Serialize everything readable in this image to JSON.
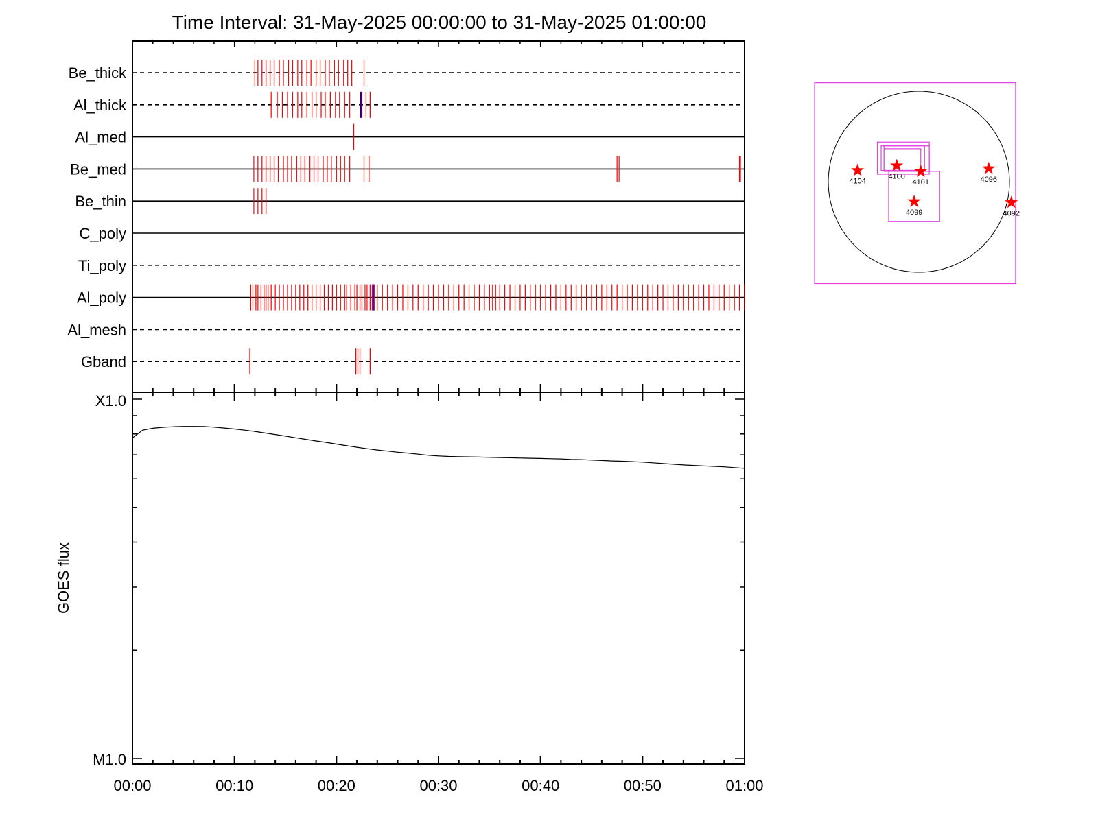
{
  "title": "Time Interval: 31-May-2025 00:00:00 to 31-May-2025 01:00:00",
  "colors": {
    "event_red": "#ff0000",
    "event_blue": "#0000cc",
    "fov_magenta": "#e040e0",
    "axis": "#000000"
  },
  "chart_data": [
    {
      "type": "timeline",
      "title": "Time Interval: 31-May-2025 00:00:00 to 31-May-2025 01:00:00",
      "xlim_minutes": [
        0,
        60
      ],
      "x_tick_labels": [
        "00:00",
        "00:10",
        "00:20",
        "00:30",
        "00:40",
        "00:50",
        "01:00"
      ],
      "rows": [
        {
          "name": "Be_thick",
          "line": "dashed",
          "events": [
            12.0,
            12.3,
            12.7,
            13.1,
            13.5,
            13.9,
            14.4,
            14.8,
            15.3,
            15.7,
            16.2,
            16.6,
            17.1,
            17.5,
            18.0,
            18.4,
            18.9,
            19.3,
            19.8,
            20.2,
            20.7,
            21.1,
            21.5,
            22.7
          ],
          "blue_events": []
        },
        {
          "name": "Al_thick",
          "line": "dashed",
          "events": [
            13.6,
            14.2,
            14.7,
            15.2,
            15.7,
            16.2,
            16.6,
            17.1,
            17.6,
            18.0,
            18.5,
            18.9,
            19.4,
            19.9,
            20.3,
            20.8,
            21.3,
            22.5,
            22.9,
            23.3
          ],
          "blue_events": [
            22.4
          ]
        },
        {
          "name": "Al_med",
          "line": "solid",
          "events": [
            21.7
          ],
          "blue_events": []
        },
        {
          "name": "Be_med",
          "line": "solid",
          "events": [
            11.9,
            12.3,
            12.7,
            13.1,
            13.5,
            13.9,
            14.3,
            14.8,
            15.2,
            15.6,
            16.1,
            16.5,
            16.9,
            17.4,
            17.8,
            18.2,
            18.7,
            19.1,
            19.5,
            20.0,
            20.4,
            20.8,
            21.3,
            22.7,
            23.2,
            47.5,
            47.7,
            59.5,
            59.6
          ],
          "blue_events": []
        },
        {
          "name": "Be_thin",
          "line": "solid",
          "events": [
            11.9,
            12.3,
            12.7,
            13.1
          ],
          "blue_events": []
        },
        {
          "name": "C_poly",
          "line": "solid",
          "events": [],
          "blue_events": []
        },
        {
          "name": "Ti_poly",
          "line": "dashed",
          "events": [],
          "blue_events": []
        },
        {
          "name": "Al_poly",
          "line": "solid",
          "events": [
            11.6,
            11.8,
            12.1,
            12.3,
            12.6,
            12.9,
            13.1,
            13.3,
            13.6,
            14.0,
            14.4,
            14.8,
            15.2,
            15.6,
            16.0,
            16.4,
            16.8,
            17.2,
            17.6,
            18.0,
            18.4,
            18.8,
            19.2,
            19.6,
            20.0,
            20.4,
            20.8,
            21.0,
            21.4,
            21.8,
            22.0,
            22.3,
            22.5,
            22.8,
            23.0,
            23.3,
            23.5,
            23.6,
            23.7,
            24.0,
            24.5,
            25.0,
            25.5,
            26.0,
            26.5,
            27.0,
            27.5,
            28.0,
            28.5,
            29.0,
            29.5,
            30.0,
            30.5,
            31.0,
            31.5,
            32.0,
            32.5,
            33.0,
            33.5,
            34.0,
            34.5,
            35.0,
            35.3,
            35.6,
            36.0,
            36.5,
            37.0,
            37.5,
            38.0,
            38.5,
            39.0,
            39.5,
            40.0,
            40.5,
            41.0,
            41.5,
            42.0,
            42.5,
            43.0,
            43.5,
            44.0,
            44.5,
            45.0,
            45.5,
            46.0,
            46.5,
            47.0,
            47.5,
            48.0,
            48.5,
            49.0,
            49.5,
            50.0,
            50.5,
            51.0,
            51.5,
            52.0,
            52.5,
            53.0,
            53.5,
            54.0,
            54.5,
            55.0,
            55.5,
            56.0,
            56.5,
            57.0,
            57.5,
            58.0,
            58.5,
            59.0,
            59.5,
            60.0
          ],
          "blue_events": [
            23.6
          ]
        },
        {
          "name": "Al_mesh",
          "line": "dashed",
          "events": [],
          "blue_events": []
        },
        {
          "name": "Gband",
          "line": "dashed",
          "events": [
            11.5,
            21.9,
            22.1,
            22.3,
            23.3
          ],
          "blue_events": []
        }
      ]
    },
    {
      "type": "line",
      "ylabel": "GOES flux",
      "y_scale": "log",
      "ylim": [
        1e-05,
        0.0001
      ],
      "y_tick_labels": [
        "M1.0",
        "X1.0"
      ],
      "xlim_minutes": [
        0,
        60
      ],
      "x_tick_labels": [
        "00:00",
        "00:10",
        "00:20",
        "00:30",
        "00:40",
        "00:50",
        "01:00"
      ],
      "series": [
        {
          "x_minutes": [
            0,
            1,
            2,
            3,
            4,
            5,
            6,
            7,
            8,
            9,
            10,
            11,
            12,
            13,
            14,
            15,
            16,
            17,
            18,
            19,
            20,
            21,
            22,
            23,
            24,
            25,
            26,
            27,
            28,
            29,
            30,
            31,
            32,
            33,
            34,
            35,
            36,
            37,
            38,
            39,
            40,
            41,
            42,
            43,
            44,
            45,
            46,
            47,
            48,
            49,
            50,
            51,
            52,
            53,
            54,
            55,
            56,
            57,
            58,
            59,
            60
          ],
          "values": [
            7.8e-05,
            8.2e-05,
            8.3e-05,
            8.35e-05,
            8.38e-05,
            8.4e-05,
            8.4e-05,
            8.39e-05,
            8.36e-05,
            8.31e-05,
            8.26e-05,
            8.2e-05,
            8.13e-05,
            8.05e-05,
            7.97e-05,
            7.89e-05,
            7.81e-05,
            7.73e-05,
            7.65e-05,
            7.58e-05,
            7.5e-05,
            7.42e-05,
            7.35e-05,
            7.28e-05,
            7.22e-05,
            7.17e-05,
            7.12e-05,
            7.08e-05,
            7.03e-05,
            6.98e-05,
            6.95e-05,
            6.93e-05,
            6.92e-05,
            6.91e-05,
            6.9e-05,
            6.89e-05,
            6.88e-05,
            6.87e-05,
            6.86e-05,
            6.85e-05,
            6.84e-05,
            6.83e-05,
            6.82e-05,
            6.8e-05,
            6.79e-05,
            6.77e-05,
            6.75e-05,
            6.73e-05,
            6.72e-05,
            6.7e-05,
            6.68e-05,
            6.65e-05,
            6.62e-05,
            6.59e-05,
            6.56e-05,
            6.54e-05,
            6.52e-05,
            6.5e-05,
            6.48e-05,
            6.45e-05,
            6.42e-05
          ]
        }
      ]
    },
    {
      "type": "scatter",
      "description_kind": "solar_disk_map",
      "disk_radius_arcsec": 960,
      "xlim_arcsec": [
        -1100,
        1100
      ],
      "ylim_arcsec": [
        -1100,
        1100
      ],
      "regions": [
        {
          "label": "4104",
          "x": -650,
          "y": 120
        },
        {
          "label": "4100",
          "x": -235,
          "y": 170
        },
        {
          "label": "4101",
          "x": 20,
          "y": 110
        },
        {
          "label": "4096",
          "x": 740,
          "y": 140
        },
        {
          "label": "4099",
          "x": -50,
          "y": -210
        },
        {
          "label": "4092",
          "x": 980,
          "y": -220
        }
      ],
      "fov_boxes_arcsec": [
        {
          "x0": -1105,
          "y0": -1080,
          "x1": 1025,
          "y1": 1050
        },
        {
          "x0": -440,
          "y0": 80,
          "x1": 110,
          "y1": 420
        },
        {
          "x0": -400,
          "y0": 120,
          "x1": 60,
          "y1": 380
        },
        {
          "x0": -370,
          "y0": 120,
          "x1": 20,
          "y1": 350
        },
        {
          "x0": -320,
          "y0": -420,
          "x1": 220,
          "y1": 110
        },
        {
          "x0": -370,
          "y0": 110,
          "x1": 110,
          "y1": 380
        }
      ]
    }
  ]
}
